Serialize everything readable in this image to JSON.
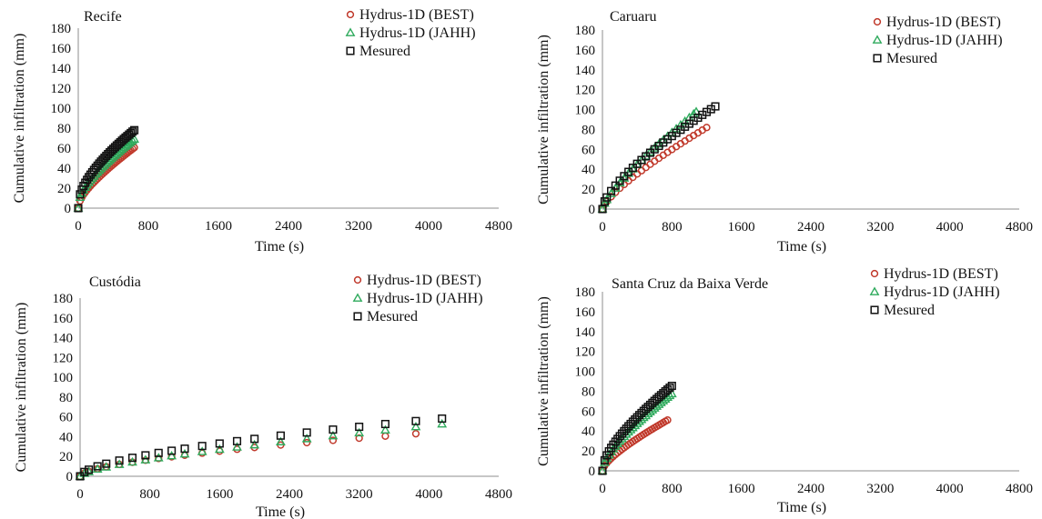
{
  "chart_data": [
    {
      "type": "scatter",
      "title": "Recife",
      "xlabel": "Time (s)",
      "ylabel": "Cumulative infiltration (mm)",
      "xlim": [
        0,
        4800
      ],
      "ylim": [
        0,
        180
      ],
      "xticks": [
        0,
        800,
        1600,
        2400,
        3200,
        4000,
        4800
      ],
      "yticks": [
        0,
        20,
        40,
        60,
        80,
        100,
        120,
        140,
        160,
        180
      ],
      "grid": false,
      "legend_position": "top-right",
      "series": [
        {
          "name": "Hydrus-1D (BEST)",
          "marker": "circle",
          "color": "#c0392b",
          "x": [
            0,
            20,
            40,
            60,
            80,
            100,
            120,
            140,
            160,
            180,
            200,
            220,
            240,
            260,
            280,
            300,
            320,
            340,
            360,
            380,
            400,
            420,
            440,
            460,
            480,
            500,
            520,
            540,
            560,
            580,
            600,
            620,
            640
          ],
          "y": [
            0,
            7.3,
            10.7,
            13.5,
            15.9,
            18.1,
            20.2,
            22.2,
            24.1,
            25.9,
            27.7,
            29.4,
            31.1,
            32.8,
            34.4,
            36.0,
            37.6,
            39.1,
            40.7,
            42.2,
            43.7,
            45.2,
            46.6,
            48.1,
            49.5,
            50.9,
            52.3,
            53.7,
            55.1,
            56.5,
            57.8,
            59.2,
            60.5
          ]
        },
        {
          "name": "Hydrus-1D (JAHH)",
          "marker": "triangle",
          "color": "#2eaa5c",
          "x": [
            0,
            20,
            40,
            60,
            80,
            100,
            120,
            140,
            160,
            180,
            200,
            220,
            240,
            260,
            280,
            300,
            320,
            340,
            360,
            380,
            400,
            420,
            440,
            460,
            480,
            500,
            520,
            540,
            560,
            580,
            600,
            620,
            640
          ],
          "y": [
            0,
            10.8,
            14.9,
            18.1,
            20.8,
            23.3,
            25.6,
            27.8,
            29.9,
            31.9,
            33.9,
            35.8,
            37.6,
            39.4,
            41.2,
            42.9,
            44.6,
            46.3,
            47.9,
            49.6,
            51.2,
            52.8,
            54.3,
            55.9,
            57.4,
            58.9,
            60.4,
            61.9,
            63.3,
            64.8,
            66.2,
            67.6,
            69.0
          ]
        },
        {
          "name": "Mesured",
          "marker": "square",
          "color": "#111111",
          "x": [
            0,
            20,
            40,
            60,
            80,
            100,
            120,
            140,
            160,
            180,
            200,
            220,
            240,
            260,
            280,
            300,
            320,
            340,
            360,
            380,
            400,
            420,
            440,
            460,
            480,
            500,
            520,
            540,
            560,
            580,
            600,
            620,
            640
          ],
          "y": [
            0,
            13.8,
            18.5,
            22.2,
            25.4,
            28.3,
            31.0,
            33.5,
            35.9,
            38.2,
            40.4,
            42.5,
            44.6,
            46.6,
            48.5,
            50.4,
            52.3,
            54.1,
            55.9,
            57.6,
            59.3,
            61.0,
            62.7,
            64.3,
            65.9,
            67.5,
            69.1,
            70.6,
            72.1,
            73.6,
            75.1,
            76.6,
            78.0
          ]
        }
      ]
    },
    {
      "type": "scatter",
      "title": "Caruaru",
      "xlabel": "Time (s)",
      "ylabel": "Cumulative infiltration (mm)",
      "xlim": [
        0,
        4800
      ],
      "ylim": [
        0,
        180
      ],
      "xticks": [
        0,
        800,
        1600,
        2400,
        3200,
        4000,
        4800
      ],
      "yticks": [
        0,
        20,
        40,
        60,
        80,
        100,
        120,
        140,
        160,
        180
      ],
      "grid": false,
      "legend_position": "top-right",
      "series": [
        {
          "name": "Hydrus-1D (BEST)",
          "marker": "circle",
          "color": "#c0392b",
          "x": [
            0,
            25,
            50,
            100,
            150,
            200,
            250,
            300,
            350,
            400,
            450,
            500,
            550,
            600,
            650,
            700,
            750,
            800,
            850,
            900,
            950,
            1000,
            1050,
            1100,
            1150,
            1200
          ],
          "y": [
            0,
            4.6,
            7.5,
            12.4,
            16.8,
            20.9,
            24.7,
            28.4,
            31.9,
            35.3,
            38.6,
            41.8,
            45.0,
            48.1,
            51.1,
            54.1,
            57.0,
            59.9,
            62.8,
            65.6,
            68.4,
            71.2,
            73.9,
            76.6,
            79.3,
            82.0
          ]
        },
        {
          "name": "Hydrus-1D (JAHH)",
          "marker": "triangle",
          "color": "#2eaa5c",
          "x": [
            0,
            25,
            50,
            100,
            150,
            200,
            250,
            300,
            350,
            400,
            450,
            500,
            550,
            600,
            650,
            700,
            750,
            800,
            850,
            900,
            950,
            1000,
            1050,
            1080
          ],
          "y": [
            0,
            5.8,
            9.4,
            15.5,
            21.0,
            26.2,
            31.1,
            35.8,
            40.3,
            44.7,
            49.0,
            53.2,
            57.3,
            61.3,
            65.3,
            69.2,
            73.1,
            76.9,
            80.7,
            84.5,
            88.2,
            91.9,
            95.6,
            97.8
          ]
        },
        {
          "name": "Mesured",
          "marker": "square",
          "color": "#111111",
          "x": [
            0,
            25,
            50,
            100,
            150,
            200,
            250,
            300,
            350,
            400,
            450,
            500,
            550,
            600,
            650,
            700,
            750,
            800,
            850,
            900,
            950,
            1000,
            1050,
            1100,
            1150,
            1200,
            1250,
            1300
          ],
          "y": [
            0,
            7.7,
            11.7,
            18.1,
            23.6,
            28.5,
            33.1,
            37.4,
            41.5,
            45.5,
            49.3,
            53.0,
            56.6,
            60.1,
            63.5,
            66.9,
            70.2,
            73.4,
            76.6,
            79.7,
            82.8,
            85.8,
            88.8,
            91.8,
            94.7,
            97.6,
            100.4,
            103.2
          ]
        }
      ]
    },
    {
      "type": "scatter",
      "title": "Custódia",
      "xlabel": "Time (s)",
      "ylabel": "Cumulative infiltration (mm)",
      "xlim": [
        0,
        4800
      ],
      "ylim": [
        0,
        180
      ],
      "xticks": [
        0,
        800,
        1600,
        2400,
        3200,
        4000,
        4800
      ],
      "yticks": [
        0,
        20,
        40,
        60,
        80,
        100,
        120,
        140,
        160,
        180
      ],
      "grid": false,
      "legend_position": "top-right",
      "series": [
        {
          "name": "Hydrus-1D (BEST)",
          "marker": "circle",
          "color": "#c0392b",
          "x": [
            0,
            50,
            100,
            200,
            300,
            450,
            600,
            750,
            900,
            1050,
            1200,
            1400,
            1600,
            1800,
            2000,
            2300,
            2600,
            2900,
            3200,
            3500,
            3850
          ],
          "y": [
            0,
            3.2,
            5.0,
            7.6,
            9.6,
            12.0,
            14.2,
            16.2,
            18.0,
            19.7,
            21.3,
            23.4,
            25.4,
            27.3,
            29.1,
            31.6,
            34.0,
            36.3,
            38.5,
            40.6,
            43.0
          ]
        },
        {
          "name": "Hydrus-1D (JAHH)",
          "marker": "triangle",
          "color": "#2eaa5c",
          "x": [
            0,
            50,
            100,
            200,
            300,
            450,
            600,
            750,
            900,
            1050,
            1200,
            1400,
            1600,
            1800,
            2000,
            2300,
            2600,
            2900,
            3200,
            3500,
            3850,
            4150
          ],
          "y": [
            0,
            2.9,
            4.6,
            7.2,
            9.3,
            11.9,
            14.3,
            16.5,
            18.6,
            20.6,
            22.5,
            24.9,
            27.2,
            29.5,
            31.7,
            34.8,
            37.9,
            40.9,
            43.8,
            46.7,
            50.0,
            52.8
          ]
        },
        {
          "name": "Mesured",
          "marker": "square",
          "color": "#111111",
          "x": [
            0,
            50,
            100,
            200,
            300,
            450,
            600,
            750,
            900,
            1050,
            1200,
            1400,
            1600,
            1800,
            2000,
            2300,
            2600,
            2900,
            3200,
            3500,
            3850,
            4150
          ],
          "y": [
            0,
            4.4,
            6.7,
            10.1,
            12.7,
            15.9,
            18.7,
            21.2,
            23.6,
            25.8,
            27.9,
            30.6,
            33.1,
            35.5,
            37.8,
            41.1,
            44.2,
            47.2,
            50.0,
            52.8,
            55.8,
            58.3
          ]
        }
      ]
    },
    {
      "type": "scatter",
      "title": "Santa Cruz da Baixa Verde",
      "xlabel": "Time (s)",
      "ylabel": "Cumulative infiltration (mm)",
      "xlim": [
        0,
        4800
      ],
      "ylim": [
        0,
        180
      ],
      "xticks": [
        0,
        800,
        1600,
        2400,
        3200,
        4000,
        4800
      ],
      "yticks": [
        0,
        20,
        40,
        60,
        80,
        100,
        120,
        140,
        160,
        180
      ],
      "grid": false,
      "legend_position": "top-right",
      "series": [
        {
          "name": "Hydrus-1D (BEST)",
          "marker": "circle",
          "color": "#c0392b",
          "x": [
            0,
            25,
            50,
            75,
            100,
            125,
            150,
            175,
            200,
            225,
            250,
            275,
            300,
            325,
            350,
            375,
            400,
            425,
            450,
            475,
            500,
            525,
            550,
            575,
            600,
            625,
            650,
            675,
            700,
            725,
            750
          ],
          "y": [
            0,
            5.1,
            7.9,
            10.3,
            12.5,
            14.5,
            16.4,
            18.2,
            19.9,
            21.6,
            23.2,
            24.8,
            26.4,
            27.9,
            29.4,
            30.9,
            32.3,
            33.8,
            35.2,
            36.6,
            38.0,
            39.3,
            40.7,
            42.0,
            43.3,
            44.6,
            45.9,
            47.2,
            48.5,
            49.8,
            51.0
          ]
        },
        {
          "name": "Hydrus-1D (JAHH)",
          "marker": "triangle",
          "color": "#2eaa5c",
          "x": [
            0,
            25,
            50,
            75,
            100,
            125,
            150,
            175,
            200,
            225,
            250,
            275,
            300,
            325,
            350,
            375,
            400,
            425,
            450,
            475,
            500,
            525,
            550,
            575,
            600,
            625,
            650,
            675,
            700,
            725,
            750,
            775,
            800
          ],
          "y": [
            0,
            8.3,
            12.5,
            16.0,
            19.1,
            22.0,
            24.7,
            27.3,
            29.8,
            32.2,
            34.5,
            36.8,
            39.0,
            41.2,
            43.3,
            45.4,
            47.5,
            49.5,
            51.5,
            53.5,
            55.4,
            57.4,
            59.3,
            61.2,
            63.0,
            64.9,
            66.7,
            68.5,
            70.3,
            72.1,
            73.9,
            75.6,
            77.4
          ]
        },
        {
          "name": "Mesured",
          "marker": "square",
          "color": "#111111",
          "x": [
            0,
            25,
            50,
            75,
            100,
            125,
            150,
            175,
            200,
            225,
            250,
            275,
            300,
            325,
            350,
            375,
            400,
            425,
            450,
            475,
            500,
            525,
            550,
            575,
            600,
            625,
            650,
            675,
            700,
            725,
            750,
            775,
            800
          ],
          "y": [
            0,
            10.6,
            15.6,
            19.6,
            23.1,
            26.3,
            29.3,
            32.1,
            34.8,
            37.4,
            39.9,
            42.4,
            44.8,
            47.1,
            49.4,
            51.6,
            53.8,
            56.0,
            58.1,
            60.2,
            62.3,
            64.3,
            66.3,
            68.3,
            70.3,
            72.2,
            74.2,
            76.1,
            78.0,
            79.9,
            81.7,
            83.6,
            85.4
          ]
        }
      ]
    }
  ]
}
